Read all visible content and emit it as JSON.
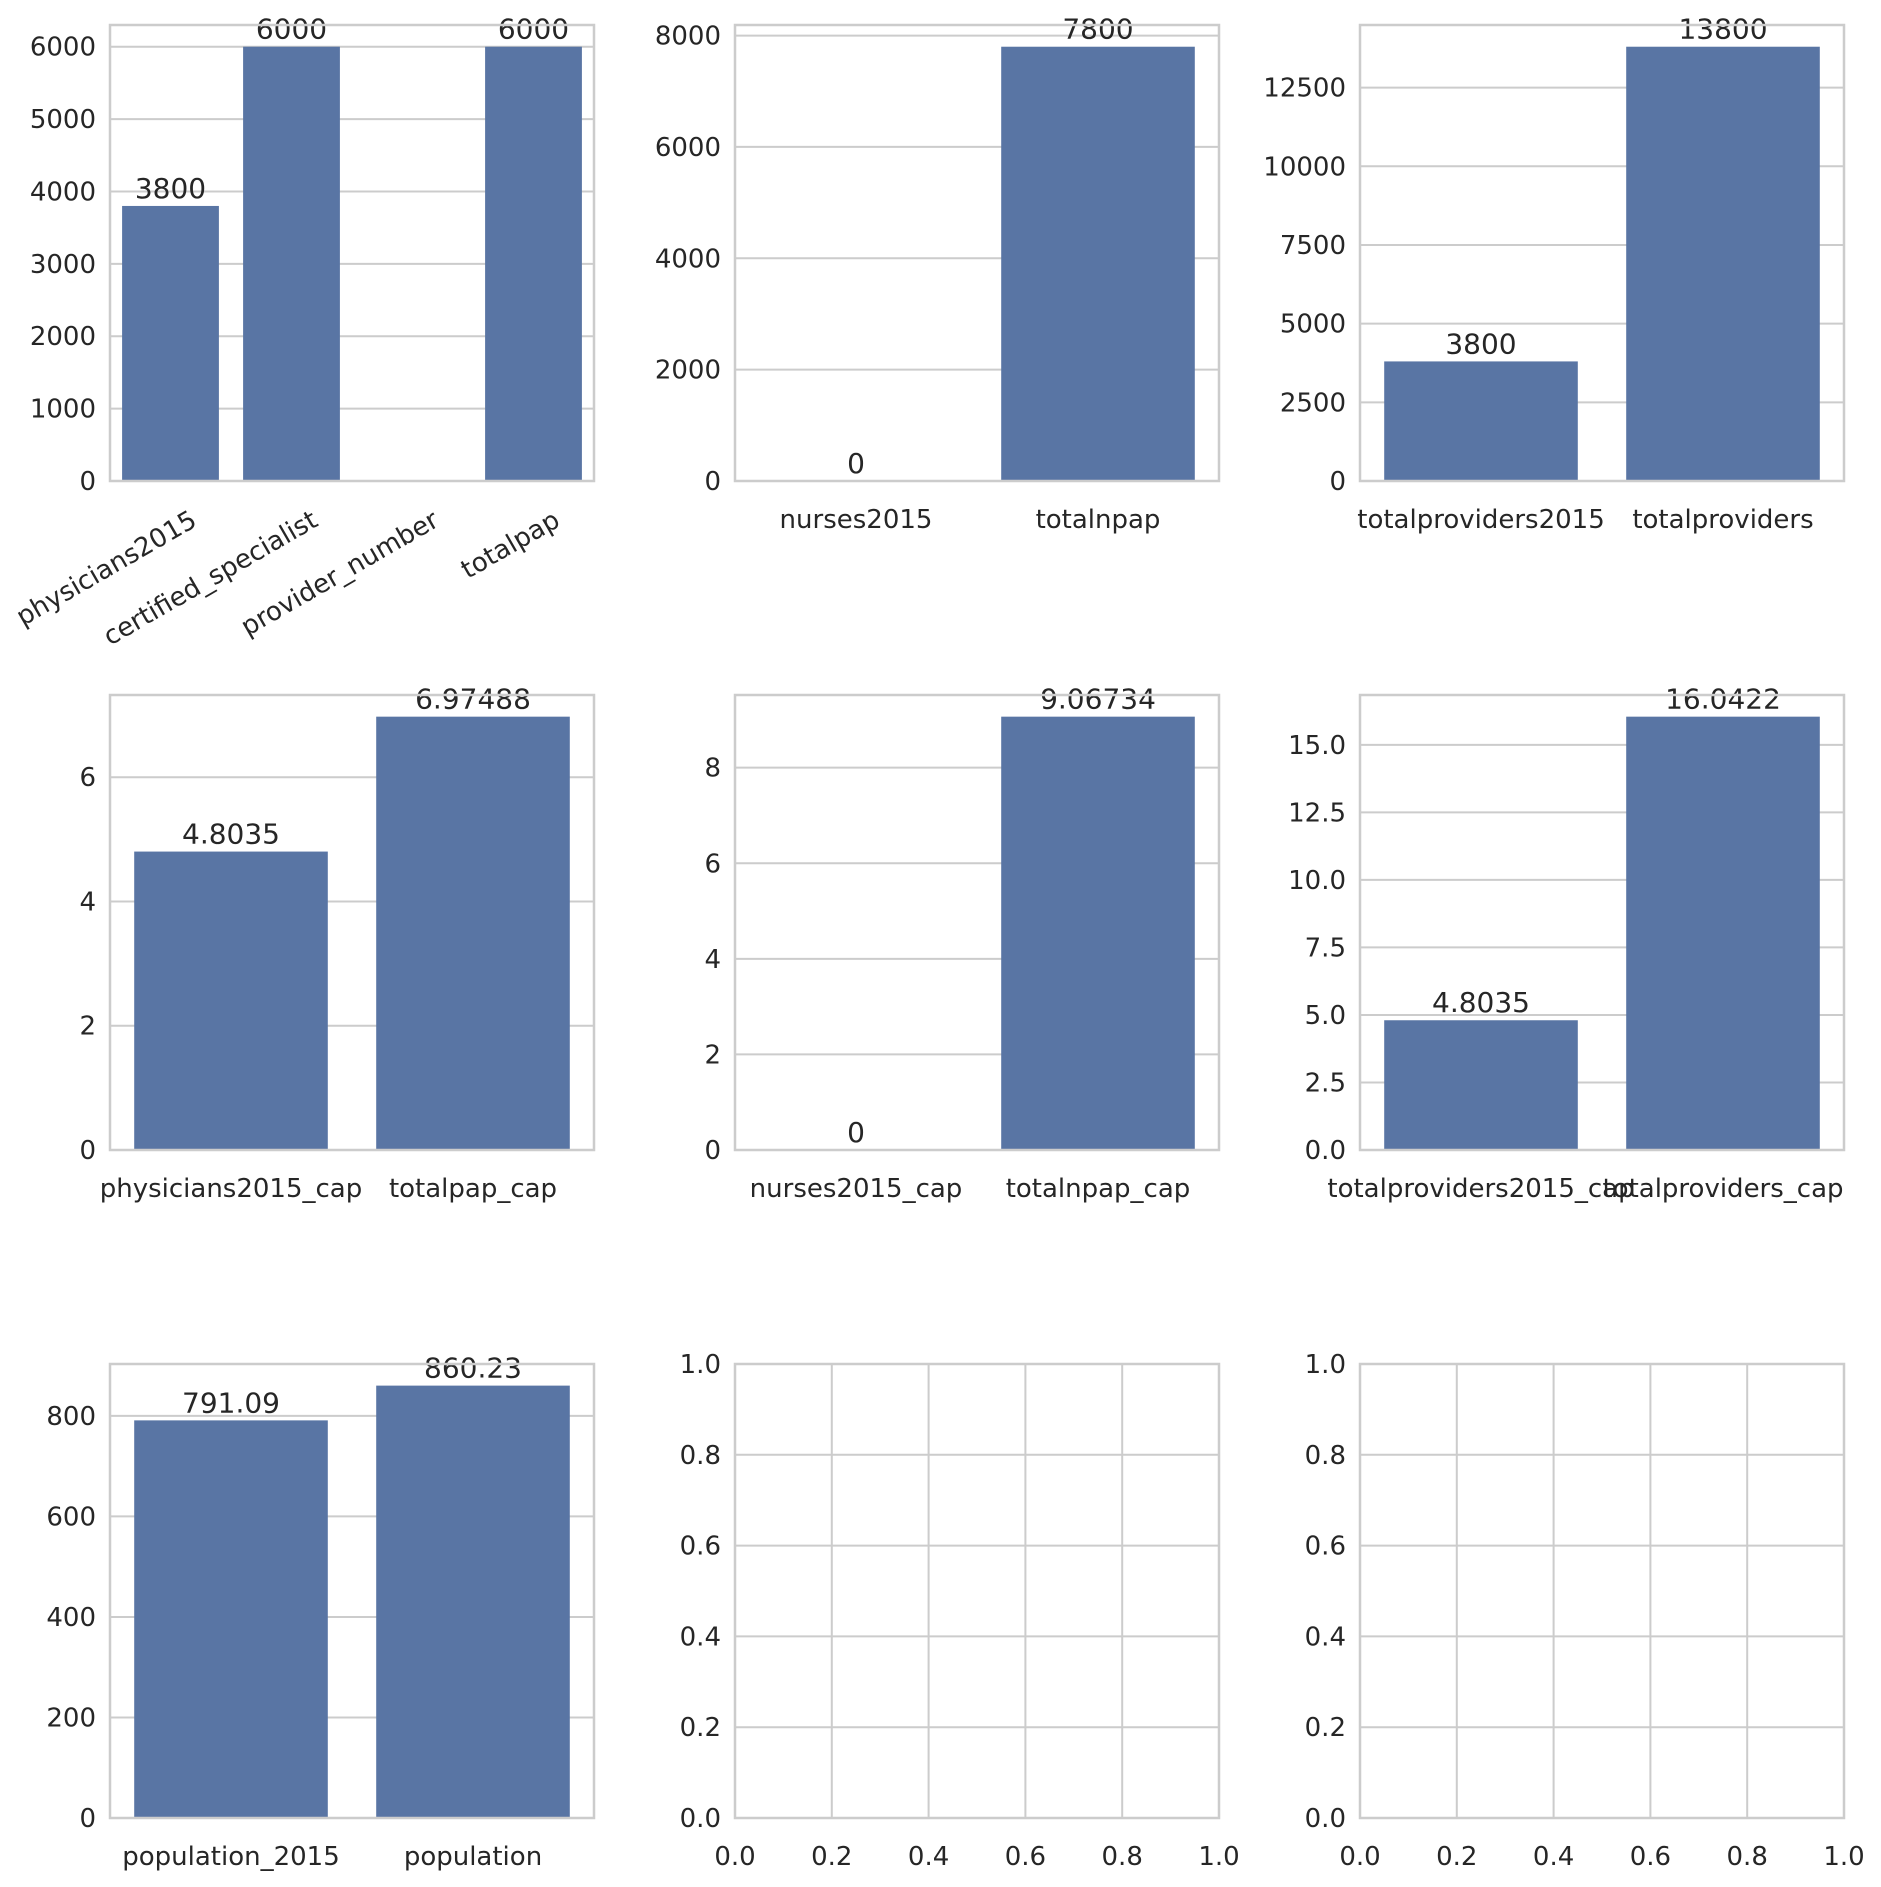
{
  "chart_data": [
    {
      "type": "bar",
      "categories": [
        "physicians2015",
        "certified_specialist",
        "provider_number",
        "totalpap"
      ],
      "values": [
        3800,
        6000,
        0,
        6000
      ],
      "value_labels": [
        "3800",
        "6000",
        "",
        "6000"
      ],
      "ylim": [
        0,
        6300
      ],
      "yticks": [
        0,
        1000,
        2000,
        3000,
        4000,
        5000,
        6000
      ],
      "ytick_labels": [
        "0",
        "1000",
        "2000",
        "3000",
        "4000",
        "5000",
        "6000"
      ],
      "x_tick_rotation": 30,
      "grid": true
    },
    {
      "type": "bar",
      "categories": [
        "nurses2015",
        "totalnpap"
      ],
      "values": [
        0,
        7800
      ],
      "value_labels": [
        "0",
        "7800"
      ],
      "ylim": [
        0,
        8190
      ],
      "yticks": [
        0,
        2000,
        4000,
        6000,
        8000
      ],
      "ytick_labels": [
        "0",
        "2000",
        "4000",
        "6000",
        "8000"
      ],
      "grid": true
    },
    {
      "type": "bar",
      "categories": [
        "totalproviders2015",
        "totalproviders"
      ],
      "values": [
        3800,
        13800
      ],
      "value_labels": [
        "3800",
        "13800"
      ],
      "ylim": [
        0,
        14490
      ],
      "yticks": [
        0,
        2500,
        5000,
        7500,
        10000,
        12500
      ],
      "ytick_labels": [
        "0",
        "2500",
        "5000",
        "7500",
        "10000",
        "12500"
      ],
      "grid": true
    },
    {
      "type": "bar",
      "categories": [
        "physicians2015_cap",
        "totalpap_cap"
      ],
      "values": [
        4.8035,
        6.97488
      ],
      "value_labels": [
        "4.8035",
        "6.97488"
      ],
      "ylim": [
        0,
        7.3236
      ],
      "yticks": [
        0,
        2,
        4,
        6
      ],
      "ytick_labels": [
        "0",
        "2",
        "4",
        "6"
      ],
      "grid": true
    },
    {
      "type": "bar",
      "categories": [
        "nurses2015_cap",
        "totalnpap_cap"
      ],
      "values": [
        0,
        9.06734
      ],
      "value_labels": [
        "0",
        "9.06734"
      ],
      "ylim": [
        0,
        9.5207
      ],
      "yticks": [
        0,
        2,
        4,
        6,
        8
      ],
      "ytick_labels": [
        "0",
        "2",
        "4",
        "6",
        "8"
      ],
      "grid": true
    },
    {
      "type": "bar",
      "categories": [
        "totalproviders2015_cap",
        "totalproviders_cap"
      ],
      "values": [
        4.8035,
        16.0422
      ],
      "value_labels": [
        "4.8035",
        "16.0422"
      ],
      "ylim": [
        0,
        16.8443
      ],
      "yticks": [
        0,
        2.5,
        5,
        7.5,
        10,
        12.5,
        15
      ],
      "ytick_labels": [
        "0.0",
        "2.5",
        "5.0",
        "7.5",
        "10.0",
        "12.5",
        "15.0"
      ],
      "grid": true
    },
    {
      "type": "bar",
      "categories": [
        "population_2015",
        "population"
      ],
      "values": [
        791.09,
        860.23
      ],
      "value_labels": [
        "791.09",
        "860.23"
      ],
      "ylim": [
        0,
        903.24
      ],
      "yticks": [
        0,
        200,
        400,
        600,
        800
      ],
      "ytick_labels": [
        "0",
        "200",
        "400",
        "600",
        "800"
      ],
      "grid": true
    },
    {
      "type": "bar",
      "categories": [],
      "values": [],
      "xlim": [
        0,
        1
      ],
      "ylim": [
        0,
        1
      ],
      "xticks": [
        0,
        0.2,
        0.4,
        0.6,
        0.8,
        1.0
      ],
      "xtick_labels": [
        "0.0",
        "0.2",
        "0.4",
        "0.6",
        "0.8",
        "1.0"
      ],
      "yticks": [
        0,
        0.2,
        0.4,
        0.6,
        0.8,
        1.0
      ],
      "ytick_labels": [
        "0.0",
        "0.2",
        "0.4",
        "0.6",
        "0.8",
        "1.0"
      ],
      "grid": true
    },
    {
      "type": "bar",
      "categories": [],
      "values": [],
      "xlim": [
        0,
        1
      ],
      "ylim": [
        0,
        1
      ],
      "xticks": [
        0,
        0.2,
        0.4,
        0.6,
        0.8,
        1.0
      ],
      "xtick_labels": [
        "0.0",
        "0.2",
        "0.4",
        "0.6",
        "0.8",
        "1.0"
      ],
      "yticks": [
        0,
        0.2,
        0.4,
        0.6,
        0.8,
        1.0
      ],
      "ytick_labels": [
        "0.0",
        "0.2",
        "0.4",
        "0.6",
        "0.8",
        "1.0"
      ],
      "grid": true
    }
  ],
  "colors": {
    "bar": "#5975a4",
    "grid": "#cccccc",
    "text": "#262626"
  }
}
